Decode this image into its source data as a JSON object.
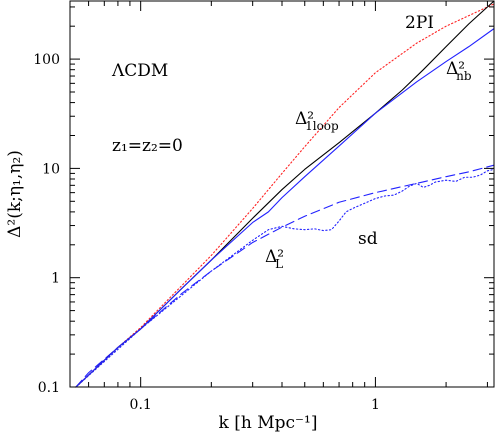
{
  "chart_data": {
    "type": "line",
    "xlabel": "k  [h  Mpc⁻¹]",
    "ylabel": "Δ²(k;η₁,η₂)",
    "xscale": "log",
    "yscale": "log",
    "xlim": [
      0.05,
      3.2
    ],
    "ylim": [
      0.1,
      340
    ],
    "x_ticks": [
      {
        "value": 0.1,
        "label": "0.1"
      },
      {
        "value": 1,
        "label": "1"
      }
    ],
    "y_ticks": [
      {
        "value": 0.1,
        "label": "0.1"
      },
      {
        "value": 1,
        "label": "1"
      },
      {
        "value": 10,
        "label": "10"
      },
      {
        "value": 100,
        "label": "100"
      }
    ],
    "grid": false,
    "legend": "none",
    "annotations": [
      {
        "id": "model",
        "text": "ΛCDM"
      },
      {
        "id": "redshift",
        "text": "z₁=z₂=0"
      },
      {
        "id": "twopi",
        "text": "2PI"
      },
      {
        "id": "nbody",
        "text": "Δ²",
        "sub": "nb"
      },
      {
        "id": "oneloop",
        "text": "Δ²",
        "sub": "1loop"
      },
      {
        "id": "linear",
        "text": "Δ²",
        "sub": "L"
      },
      {
        "id": "sd",
        "text": "sd"
      }
    ],
    "series": [
      {
        "key": "linear",
        "style": "dashed",
        "color": "#2222ff",
        "x": [
          0.053,
          0.06,
          0.08,
          0.1,
          0.15,
          0.2,
          0.3,
          0.4,
          0.5,
          0.7,
          1.0,
          1.5,
          2.0,
          2.5,
          3.2
        ],
        "y": [
          0.1,
          0.135,
          0.23,
          0.34,
          0.72,
          1.15,
          2.1,
          2.9,
          3.65,
          4.9,
          6.0,
          7.3,
          8.4,
          9.3,
          10.7
        ]
      },
      {
        "key": "sd",
        "style": "dotted",
        "color": "#2222ff",
        "x": [
          0.053,
          0.1,
          0.2,
          0.3,
          0.35,
          0.4,
          0.45,
          0.5,
          0.55,
          0.6,
          0.65,
          0.7,
          0.75,
          0.8,
          0.9,
          1.0,
          1.1,
          1.2,
          1.3,
          1.4,
          1.5,
          1.6,
          1.7,
          1.8,
          2.0,
          2.2,
          2.4,
          2.6,
          2.8,
          3.0,
          3.2
        ],
        "y": [
          0.1,
          0.34,
          1.15,
          2.2,
          2.75,
          2.95,
          2.8,
          2.75,
          2.8,
          2.7,
          2.75,
          3.3,
          4.0,
          4.3,
          4.8,
          5.3,
          5.6,
          5.7,
          6.2,
          6.9,
          7.3,
          6.7,
          7.0,
          7.5,
          7.8,
          7.6,
          8.3,
          8.3,
          8.7,
          9.5,
          9.8
        ]
      },
      {
        "key": "oneloop",
        "style": "dotted",
        "color": "#ff2222",
        "x": [
          0.053,
          0.08,
          0.1,
          0.15,
          0.2,
          0.3,
          0.4,
          0.5,
          0.7,
          1.0,
          1.5,
          2.0,
          2.5,
          3.2
        ],
        "y": [
          0.1,
          0.23,
          0.35,
          0.85,
          1.6,
          4.3,
          9.0,
          15.8,
          36,
          75,
          140,
          200,
          250,
          320
        ]
      },
      {
        "key": "twopi",
        "style": "solid",
        "color": "#000000",
        "x": [
          0.053,
          0.08,
          0.1,
          0.15,
          0.2,
          0.3,
          0.4,
          0.5,
          0.7,
          1.0,
          1.3,
          1.6,
          2.0,
          2.5,
          3.2
        ],
        "y": [
          0.1,
          0.23,
          0.34,
          0.8,
          1.45,
          3.5,
          6.4,
          9.8,
          17.2,
          32,
          52,
          80,
          130,
          210,
          340
        ]
      },
      {
        "key": "nbody",
        "style": "solid",
        "color": "#2222ff",
        "x": [
          0.053,
          0.08,
          0.1,
          0.15,
          0.2,
          0.3,
          0.35,
          0.4,
          0.5,
          0.7,
          1.0,
          1.5,
          2.0,
          2.5,
          3.2
        ],
        "y": [
          0.1,
          0.23,
          0.34,
          0.8,
          1.45,
          3.2,
          4.0,
          5.4,
          8.4,
          16,
          32,
          62,
          95,
          130,
          190
        ]
      }
    ]
  }
}
